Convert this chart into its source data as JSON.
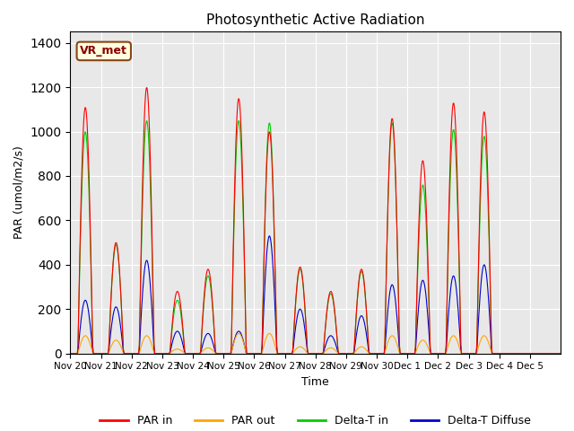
{
  "title": "Photosynthetic Active Radiation",
  "xlabel": "Time",
  "ylabel": "PAR (umol/m2/s)",
  "ylim": [
    0,
    1450
  ],
  "yticks": [
    0,
    200,
    400,
    600,
    800,
    1000,
    1200,
    1400
  ],
  "legend_labels": [
    "PAR in",
    "PAR out",
    "Delta-T in",
    "Delta-T Diffuse"
  ],
  "legend_colors": [
    "#ff0000",
    "#ffa500",
    "#00cc00",
    "#0000cc"
  ],
  "vr_met_label": "VR_met",
  "background_color": "#e8e8e8",
  "day_peaks_par_in": [
    1110,
    500,
    1200,
    280,
    380,
    1150,
    1000,
    390,
    280,
    380,
    1060,
    870,
    1130,
    1090,
    0,
    0
  ],
  "day_peaks_par_out": [
    80,
    60,
    80,
    20,
    25,
    90,
    90,
    30,
    25,
    30,
    80,
    60,
    80,
    80,
    0,
    0
  ],
  "day_peaks_delta_t": [
    1000,
    490,
    1050,
    240,
    350,
    1050,
    1040,
    380,
    270,
    370,
    1040,
    760,
    1010,
    980,
    0,
    0
  ],
  "day_peaks_diffuse": [
    240,
    210,
    420,
    100,
    90,
    100,
    530,
    200,
    80,
    170,
    310,
    330,
    350,
    400,
    0,
    0
  ],
  "x_tick_labels": [
    "Nov 20",
    "Nov 21",
    "Nov 22",
    "Nov 23",
    "Nov 24",
    "Nov 25",
    "Nov 26",
    "Nov 27",
    "Nov 28",
    "Nov 29",
    "Nov 30",
    "Dec 1",
    "Dec 2",
    "Dec 3",
    "Dec 4",
    "Dec 5"
  ],
  "num_days": 16,
  "steps_per_day": 48
}
